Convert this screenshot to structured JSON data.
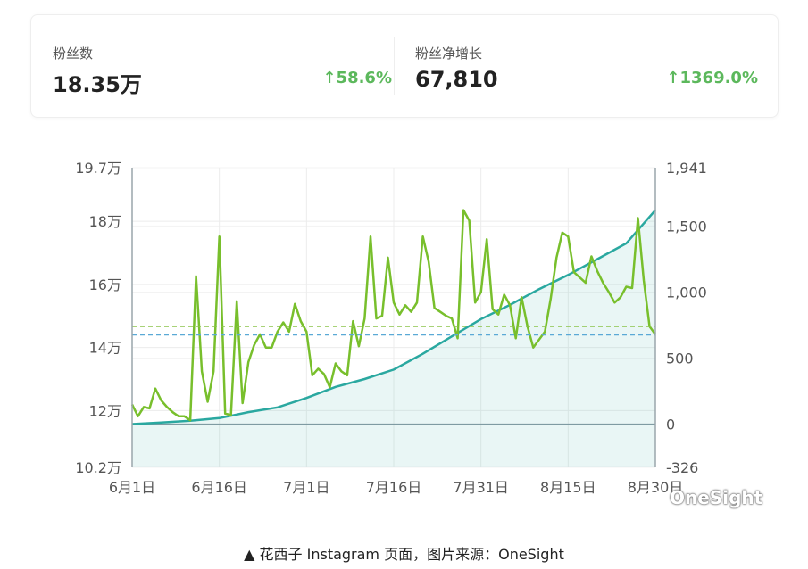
{
  "stats": {
    "followers": {
      "label": "粉丝数",
      "value": "18.35万",
      "change": "58.6%",
      "arrow": "↑"
    },
    "net_growth": {
      "label": "粉丝净增长",
      "value": "67,810",
      "change": "1369.0%",
      "arrow": "↑"
    }
  },
  "colors": {
    "accent_green": "#5cb85c",
    "line_teal": "#2aa8a0",
    "line_green": "#78bf2c",
    "avg_green": "#8bc34a",
    "avg_blue": "#5aa9d6"
  },
  "chart_data": {
    "type": "line",
    "x_ticks": [
      "6月1日",
      "6月16日",
      "7月1日",
      "7月16日",
      "7月31日",
      "8月15日",
      "8月30日"
    ],
    "y_left_ticks": [
      "19.7万",
      "18万",
      "16万",
      "14万",
      "12万",
      "10.2万"
    ],
    "y_right_ticks": [
      "1,941",
      "1,500",
      "1,000",
      "500",
      "0",
      "-326"
    ],
    "y_left_range": [
      10.2,
      19.7
    ],
    "y_right_range": [
      -326,
      1941
    ],
    "x_range": [
      0,
      90
    ],
    "series": [
      {
        "axis": "left",
        "x": [
          0,
          5,
          10,
          15,
          20,
          25,
          30,
          35,
          40,
          45,
          50,
          55,
          60,
          65,
          70,
          75,
          80,
          85,
          90
        ],
        "values": [
          11.57,
          11.62,
          11.68,
          11.76,
          11.95,
          12.1,
          12.4,
          12.75,
          13.0,
          13.3,
          13.8,
          14.35,
          14.9,
          15.35,
          15.85,
          16.3,
          16.8,
          17.3,
          18.35
        ]
      },
      {
        "axis": "right",
        "x": [
          0,
          1,
          2,
          3,
          4,
          5,
          6,
          7,
          8,
          9,
          10,
          11,
          12,
          13,
          14,
          15,
          16,
          17,
          18,
          19,
          20,
          21,
          22,
          23,
          24,
          25,
          26,
          27,
          28,
          29,
          30,
          31,
          32,
          33,
          34,
          35,
          36,
          37,
          38,
          39,
          40,
          41,
          42,
          43,
          44,
          45,
          46,
          47,
          48,
          49,
          50,
          51,
          52,
          53,
          54,
          55,
          56,
          57,
          58,
          59,
          60,
          61,
          62,
          63,
          64,
          65,
          66,
          67,
          68,
          69,
          70,
          71,
          72,
          73,
          74,
          75,
          76,
          77,
          78,
          79,
          80,
          81,
          82,
          83,
          84,
          85,
          86,
          87,
          88,
          89,
          90
        ],
        "values": [
          150,
          60,
          130,
          120,
          270,
          180,
          130,
          90,
          60,
          60,
          30,
          1120,
          400,
          170,
          400,
          1420,
          80,
          70,
          930,
          160,
          470,
          600,
          680,
          580,
          580,
          700,
          770,
          700,
          910,
          780,
          700,
          370,
          420,
          380,
          280,
          460,
          400,
          370,
          780,
          590,
          800,
          1420,
          800,
          820,
          1260,
          920,
          830,
          900,
          850,
          920,
          1420,
          1230,
          880,
          850,
          820,
          800,
          650,
          1620,
          1540,
          920,
          1000,
          1400,
          870,
          830,
          980,
          900,
          650,
          960,
          740,
          580,
          640,
          700,
          950,
          1260,
          1450,
          1420,
          1150,
          1110,
          1070,
          1270,
          1160,
          1070,
          1000,
          920,
          960,
          1040,
          1030,
          1560,
          1090,
          740,
          680
        ]
      }
    ],
    "reference_lines": [
      {
        "axis": "right",
        "value": 740
      },
      {
        "axis": "left",
        "value": 14.4
      }
    ]
  },
  "watermark": {
    "text": "OneSight"
  },
  "caption": "▲ 花西子 Instagram 页面，图片来源：OneSight"
}
